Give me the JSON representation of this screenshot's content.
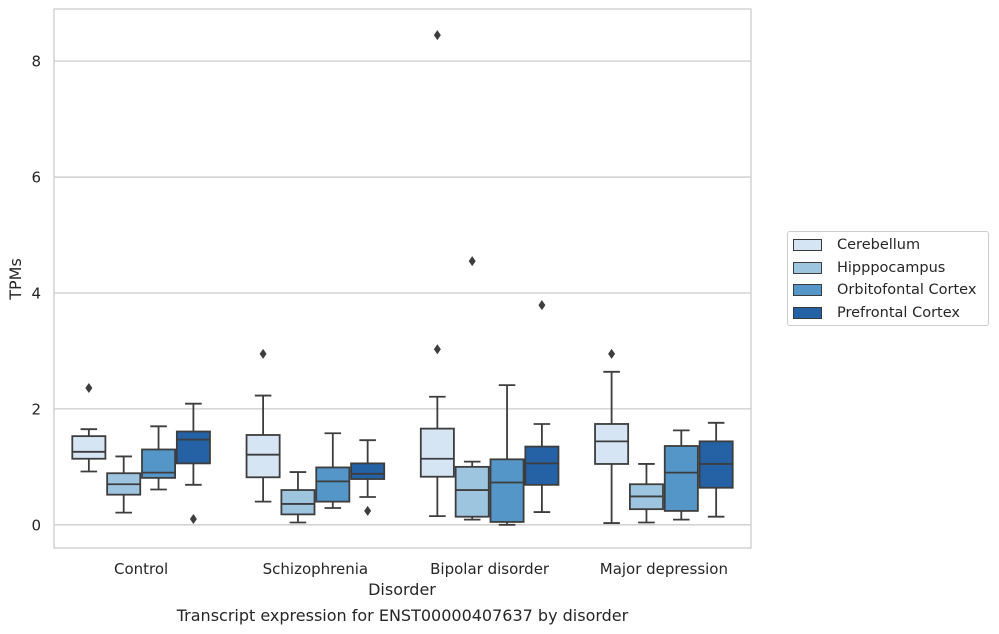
{
  "caption": "Transcript expression for ENST00000407637 by disorder",
  "chart_data": {
    "type": "box",
    "xlabel": "Disorder",
    "ylabel": "TPMs",
    "ylim": [
      -0.4,
      8.9
    ],
    "yticks": [
      0,
      2,
      4,
      6,
      8
    ],
    "grid": "horizontal",
    "legend_position": "right",
    "categories": [
      "Control",
      "Schizophrenia",
      "Bipolar disorder",
      "Major depression"
    ],
    "series": [
      {
        "name": "Cerebellum",
        "color": "#d6e5f3",
        "boxes": [
          {
            "whislo": 0.92,
            "q1": 1.14,
            "med": 1.26,
            "q3": 1.53,
            "whishi": 1.65,
            "fliers": [
              2.36
            ]
          },
          {
            "whislo": 0.4,
            "q1": 0.82,
            "med": 1.21,
            "q3": 1.55,
            "whishi": 2.23,
            "fliers": [
              2.95
            ]
          },
          {
            "whislo": 0.15,
            "q1": 0.83,
            "med": 1.14,
            "q3": 1.66,
            "whishi": 2.21,
            "fliers": [
              3.03,
              8.45
            ]
          },
          {
            "whislo": 0.03,
            "q1": 1.05,
            "med": 1.44,
            "q3": 1.74,
            "whishi": 2.64,
            "fliers": [
              2.95
            ]
          }
        ]
      },
      {
        "name": "Hipppocampus",
        "color": "#9ec5df",
        "boxes": [
          {
            "whislo": 0.21,
            "q1": 0.52,
            "med": 0.7,
            "q3": 0.89,
            "whishi": 1.18,
            "fliers": []
          },
          {
            "whislo": 0.04,
            "q1": 0.18,
            "med": 0.36,
            "q3": 0.6,
            "whishi": 0.91,
            "fliers": []
          },
          {
            "whislo": 0.09,
            "q1": 0.14,
            "med": 0.6,
            "q3": 1.0,
            "whishi": 1.09,
            "fliers": [
              4.55
            ]
          },
          {
            "whislo": 0.04,
            "q1": 0.27,
            "med": 0.49,
            "q3": 0.7,
            "whishi": 1.05,
            "fliers": []
          }
        ]
      },
      {
        "name": "Orbitofontal Cortex",
        "color": "#5596c9",
        "boxes": [
          {
            "whislo": 0.61,
            "q1": 0.81,
            "med": 0.9,
            "q3": 1.3,
            "whishi": 1.7,
            "fliers": []
          },
          {
            "whislo": 0.29,
            "q1": 0.4,
            "med": 0.75,
            "q3": 0.99,
            "whishi": 1.58,
            "fliers": []
          },
          {
            "whislo": 0.0,
            "q1": 0.05,
            "med": 0.73,
            "q3": 1.13,
            "whishi": 2.41,
            "fliers": []
          },
          {
            "whislo": 0.09,
            "q1": 0.24,
            "med": 0.9,
            "q3": 1.36,
            "whishi": 1.63,
            "fliers": []
          }
        ]
      },
      {
        "name": "Prefrontal Cortex",
        "color": "#2562a5",
        "boxes": [
          {
            "whislo": 0.69,
            "q1": 1.06,
            "med": 1.47,
            "q3": 1.61,
            "whishi": 2.09,
            "fliers": [
              0.1
            ]
          },
          {
            "whislo": 0.48,
            "q1": 0.79,
            "med": 0.88,
            "q3": 1.06,
            "whishi": 1.46,
            "fliers": [
              0.24
            ]
          },
          {
            "whislo": 0.22,
            "q1": 0.69,
            "med": 1.06,
            "q3": 1.35,
            "whishi": 1.74,
            "fliers": [
              3.79
            ]
          },
          {
            "whislo": 0.14,
            "q1": 0.64,
            "med": 1.05,
            "q3": 1.44,
            "whishi": 1.76,
            "fliers": []
          }
        ]
      }
    ]
  }
}
